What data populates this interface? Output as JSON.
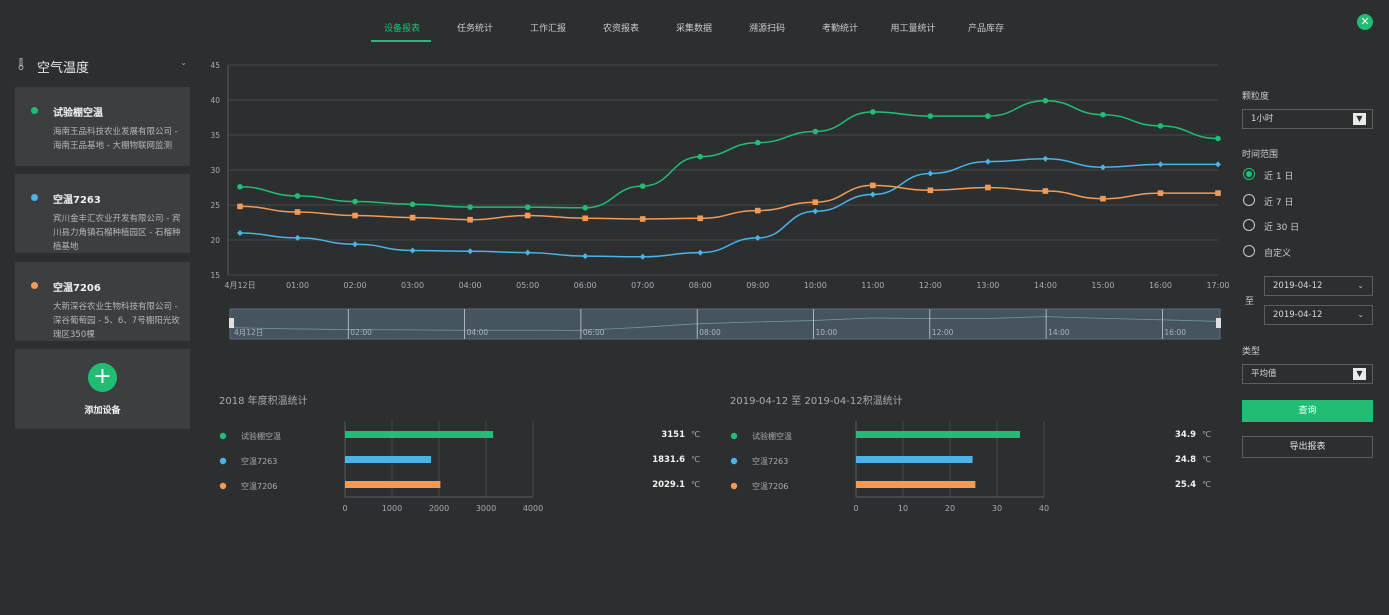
{
  "tabs": [
    {
      "label": "设备报表",
      "active": true
    },
    {
      "label": "任务统计"
    },
    {
      "label": "工作汇报"
    },
    {
      "label": "农资报表"
    },
    {
      "label": "采集数据"
    },
    {
      "label": "溯源扫码"
    },
    {
      "label": "考勤统计"
    },
    {
      "label": "用工量统计"
    },
    {
      "label": "产品库存"
    }
  ],
  "close_icon": "close-icon",
  "sidebar": {
    "title": "空气温度",
    "devices": [
      {
        "name": "试验棚空温",
        "color": "#22bd74",
        "desc": "海南王品科技农业发展有限公司 - 海南王品基地 - 大棚物联网监测"
      },
      {
        "name": "空温7263",
        "color": "#4ab3e8",
        "desc": "宾川金丰汇农业开发有限公司 - 宾川县力角镇石榴种植园区 - 石榴种植基地"
      },
      {
        "name": "空温7206",
        "color": "#f39a57",
        "desc": "大新深谷农业生物科技有限公司 - 深谷葡萄园 - 5、6、7号棚阳光玫瑰区350棵"
      }
    ],
    "add_label": "添加设备"
  },
  "right_panel": {
    "granularity_label": "颗粒度",
    "granularity_value": "1小时",
    "range_label": "时间范围",
    "range_options": [
      {
        "label": "近 1 日",
        "checked": true
      },
      {
        "label": "近 7 日"
      },
      {
        "label": "近 30 日"
      },
      {
        "label": "自定义"
      }
    ],
    "to_label": "至",
    "date_from": "2019-04-12",
    "date_to": "2019-04-12",
    "type_label": "类型",
    "type_value": "平均值",
    "query_label": "查询",
    "export_label": "导出报表"
  },
  "chart_data": [
    {
      "type": "line",
      "x": [
        "4月12日",
        "01:00",
        "02:00",
        "03:00",
        "04:00",
        "05:00",
        "06:00",
        "07:00",
        "08:00",
        "09:00",
        "10:00",
        "11:00",
        "12:00",
        "13:00",
        "14:00",
        "15:00",
        "16:00",
        "17:00"
      ],
      "ylim": [
        15,
        45
      ],
      "yticks": [
        15,
        20,
        25,
        30,
        35,
        40,
        45
      ],
      "grid": true,
      "series": [
        {
          "name": "试验棚空温",
          "color": "#22bd74",
          "marker": "circle",
          "values": [
            27.6,
            26.3,
            25.5,
            25.1,
            24.7,
            24.7,
            24.6,
            27.7,
            31.9,
            33.9,
            35.5,
            38.3,
            37.7,
            37.7,
            39.9,
            37.9,
            36.3,
            34.5
          ]
        },
        {
          "name": "空温7263",
          "color": "#4ab3e8",
          "marker": "diamond",
          "values": [
            21.0,
            20.3,
            19.4,
            18.5,
            18.4,
            18.2,
            17.7,
            17.6,
            18.2,
            20.3,
            24.1,
            26.5,
            29.5,
            31.2,
            31.6,
            30.4,
            30.8,
            30.8
          ]
        },
        {
          "name": "空温7206",
          "color": "#f39a57",
          "marker": "square",
          "values": [
            24.8,
            24.0,
            23.5,
            23.2,
            22.9,
            23.5,
            23.1,
            23.0,
            23.1,
            24.2,
            25.4,
            27.8,
            27.1,
            27.5,
            27.0,
            25.9,
            26.7,
            26.7
          ]
        }
      ],
      "zoom_labels": [
        "4月12日",
        "02:00",
        "04:00",
        "06:00",
        "08:00",
        "10:00",
        "12:00",
        "14:00",
        "16:00"
      ]
    },
    {
      "type": "bar",
      "orientation": "horizontal",
      "title": "2018 年度积温统计",
      "categories": [
        "试验棚空温",
        "空温7263",
        "空温7206"
      ],
      "colors": [
        "#22bd74",
        "#4ab3e8",
        "#f39a57"
      ],
      "values": [
        3151,
        1831.6,
        2029.1
      ],
      "value_labels": [
        "3151",
        "1831.6",
        "2029.1"
      ],
      "unit": "℃",
      "xlim": [
        0,
        4000
      ],
      "xticks": [
        0,
        1000,
        2000,
        3000,
        4000
      ]
    },
    {
      "type": "bar",
      "orientation": "horizontal",
      "title": "2019-04-12 至 2019-04-12积温统计",
      "categories": [
        "试验棚空温",
        "空温7263",
        "空温7206"
      ],
      "colors": [
        "#22bd74",
        "#4ab3e8",
        "#f39a57"
      ],
      "values": [
        34.9,
        24.8,
        25.4
      ],
      "value_labels": [
        "34.9",
        "24.8",
        "25.4"
      ],
      "unit": "℃",
      "xlim": [
        0,
        40
      ],
      "xticks": [
        0,
        10,
        20,
        30,
        40
      ]
    }
  ]
}
